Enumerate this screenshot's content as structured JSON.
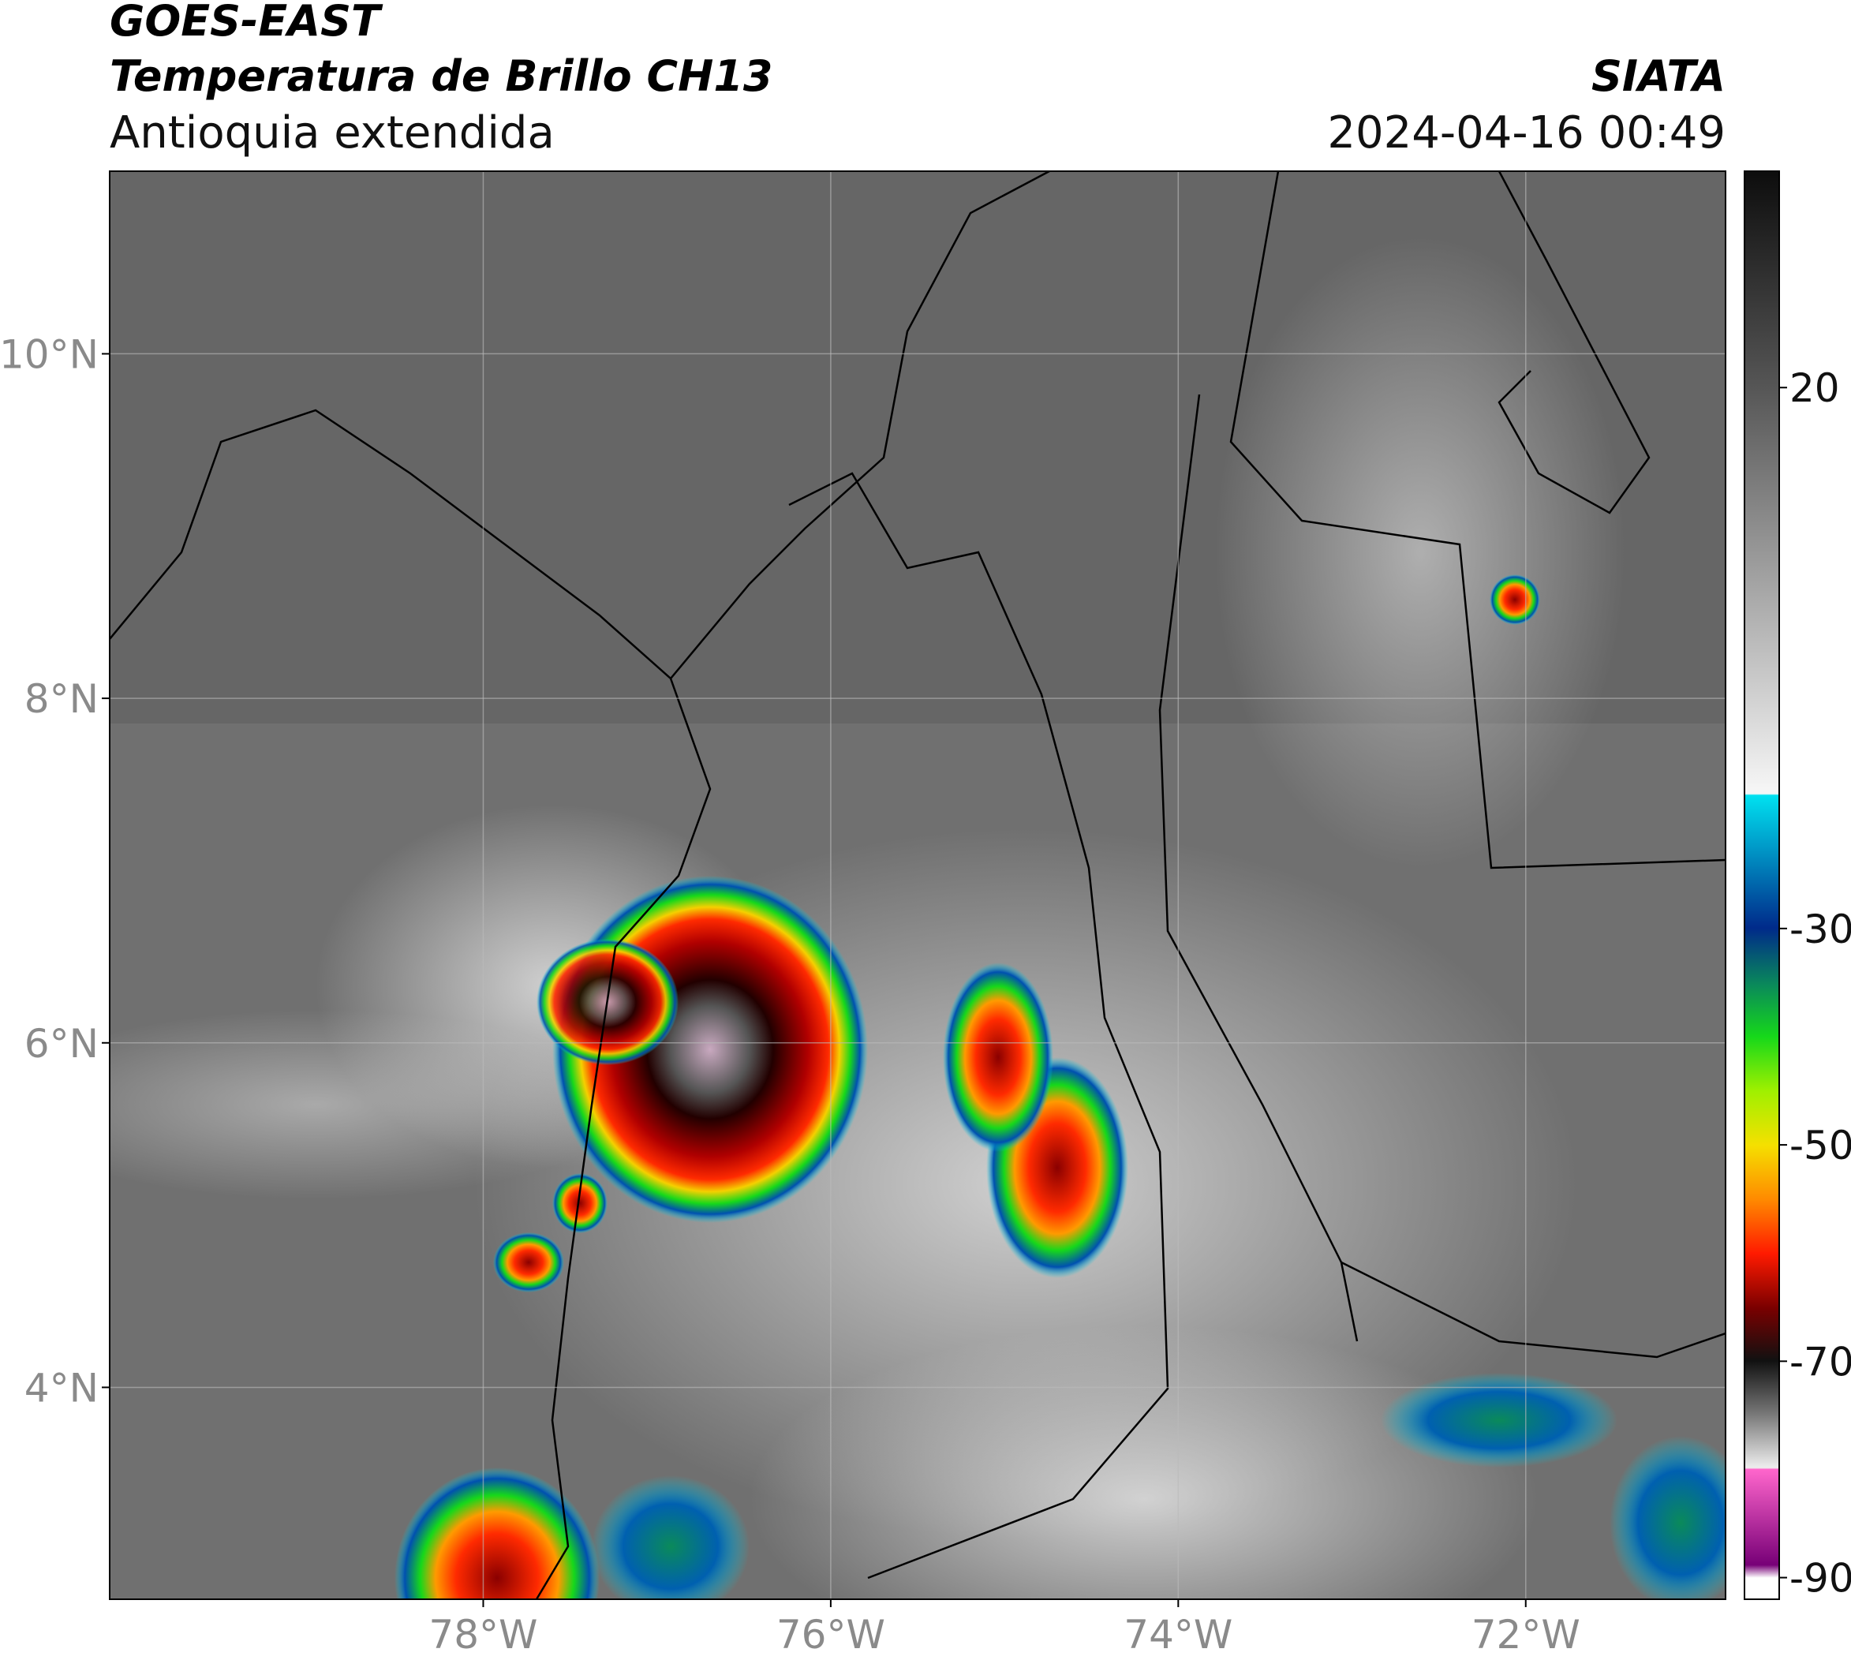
{
  "chart_data": {
    "type": "map",
    "title": "GOES-EAST",
    "subtitle": "Temperatura de Brillo CH13",
    "region": "Antioquia extendida",
    "source": "SIATA",
    "datetime": "2024-04-16 00:49",
    "xlim": [
      -80.15,
      -70.85
    ],
    "ylim": [
      2.77,
      11.06
    ],
    "xticks": [
      {
        "value": -78,
        "label": "78°W"
      },
      {
        "value": -76,
        "label": "76°W"
      },
      {
        "value": -74,
        "label": "74°W"
      },
      {
        "value": -72,
        "label": "72°W"
      }
    ],
    "yticks": [
      {
        "value": 4,
        "label": "4°N"
      },
      {
        "value": 6,
        "label": "6°N"
      },
      {
        "value": 8,
        "label": "8°N"
      },
      {
        "value": 10,
        "label": "10°N"
      }
    ],
    "grid": true,
    "colorbar": {
      "lim": [
        -92,
        40
      ],
      "ticks": [
        20,
        -30,
        -50,
        -70,
        -90
      ]
    }
  }
}
